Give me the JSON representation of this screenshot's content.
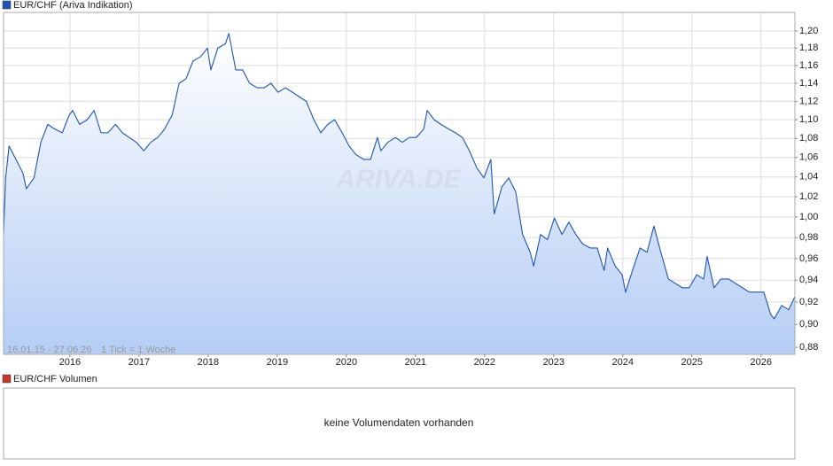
{
  "chart_data": {
    "type": "area",
    "watermark": "ARIVA.DE",
    "date_range": "16.01.15 - 27.06.26",
    "tick_note": "1 Tick = 1 Woche",
    "log_scale": true,
    "grid": true,
    "xlim": [
      2015.04,
      2026.49
    ],
    "xticks": [
      2016,
      2017,
      2018,
      2019,
      2020,
      2021,
      2022,
      2023,
      2024,
      2025,
      2026
    ],
    "ylim": [
      0.874,
      1.222
    ],
    "yticks": [
      {
        "value": 0.88,
        "label": "0,88"
      },
      {
        "value": 0.9,
        "label": "0,90"
      },
      {
        "value": 0.92,
        "label": "0,92"
      },
      {
        "value": 0.94,
        "label": "0,94"
      },
      {
        "value": 0.96,
        "label": "0,96"
      },
      {
        "value": 0.98,
        "label": "0,98"
      },
      {
        "value": 1.0,
        "label": "1,00"
      },
      {
        "value": 1.02,
        "label": "1,02"
      },
      {
        "value": 1.04,
        "label": "1,04"
      },
      {
        "value": 1.06,
        "label": "1,06"
      },
      {
        "value": 1.08,
        "label": "1,08"
      },
      {
        "value": 1.1,
        "label": "1,10"
      },
      {
        "value": 1.12,
        "label": "1,12"
      },
      {
        "value": 1.14,
        "label": "1,14"
      },
      {
        "value": 1.16,
        "label": "1,16"
      },
      {
        "value": 1.18,
        "label": "1,18"
      },
      {
        "value": 1.2,
        "label": "1,20"
      }
    ],
    "x": [
      2015.04,
      2015.07,
      2015.12,
      2015.22,
      2015.32,
      2015.37,
      2015.48,
      2015.58,
      2015.68,
      2015.78,
      2015.89,
      2015.99,
      2016.04,
      2016.14,
      2016.25,
      2016.35,
      2016.45,
      2016.55,
      2016.66,
      2016.76,
      2016.86,
      2016.96,
      2017.07,
      2017.17,
      2017.27,
      2017.37,
      2017.48,
      2017.58,
      2017.68,
      2017.78,
      2017.89,
      2017.99,
      2018.04,
      2018.14,
      2018.25,
      2018.3,
      2018.4,
      2018.5,
      2018.6,
      2018.71,
      2018.81,
      2018.91,
      2019.01,
      2019.12,
      2019.22,
      2019.32,
      2019.42,
      2019.53,
      2019.63,
      2019.73,
      2019.83,
      2019.94,
      2020.04,
      2020.14,
      2020.25,
      2020.35,
      2020.45,
      2020.5,
      2020.6,
      2020.71,
      2020.81,
      2020.91,
      2021.01,
      2021.12,
      2021.17,
      2021.27,
      2021.37,
      2021.48,
      2021.58,
      2021.68,
      2021.78,
      2021.89,
      2021.99,
      2022.09,
      2022.14,
      2022.25,
      2022.35,
      2022.45,
      2022.55,
      2022.66,
      2022.71,
      2022.81,
      2022.91,
      2023.01,
      2023.12,
      2023.22,
      2023.32,
      2023.42,
      2023.53,
      2023.63,
      2023.73,
      2023.78,
      2023.89,
      2023.99,
      2024.04,
      2024.14,
      2024.25,
      2024.35,
      2024.45,
      2024.55,
      2024.66,
      2024.76,
      2024.86,
      2024.96,
      2025.07,
      2025.17,
      2025.22,
      2025.32,
      2025.42,
      2025.53,
      2025.63,
      2025.73,
      2025.83,
      2025.94,
      2026.04,
      2026.14,
      2026.19,
      2026.3,
      2026.4,
      2026.49
    ],
    "series": [
      {
        "name": "EUR/CHF (Ariva Indikation)",
        "color": "#1f55b0",
        "values": [
          0.983,
          1.039,
          1.072,
          1.058,
          1.044,
          1.028,
          1.039,
          1.076,
          1.095,
          1.09,
          1.086,
          1.105,
          1.11,
          1.095,
          1.1,
          1.11,
          1.086,
          1.086,
          1.095,
          1.086,
          1.081,
          1.076,
          1.067,
          1.076,
          1.081,
          1.09,
          1.105,
          1.14,
          1.145,
          1.165,
          1.17,
          1.18,
          1.155,
          1.18,
          1.185,
          1.197,
          1.155,
          1.155,
          1.14,
          1.135,
          1.135,
          1.14,
          1.13,
          1.135,
          1.13,
          1.125,
          1.12,
          1.1,
          1.086,
          1.095,
          1.1,
          1.086,
          1.072,
          1.063,
          1.058,
          1.058,
          1.081,
          1.067,
          1.076,
          1.081,
          1.076,
          1.081,
          1.081,
          1.09,
          1.11,
          1.1,
          1.095,
          1.09,
          1.086,
          1.081,
          1.067,
          1.049,
          1.039,
          1.058,
          1.003,
          1.03,
          1.039,
          1.025,
          0.983,
          0.966,
          0.953,
          0.983,
          0.978,
          0.999,
          0.983,
          0.995,
          0.983,
          0.974,
          0.97,
          0.97,
          0.949,
          0.97,
          0.953,
          0.945,
          0.929,
          0.949,
          0.97,
          0.966,
          0.991,
          0.966,
          0.941,
          0.937,
          0.933,
          0.933,
          0.945,
          0.941,
          0.962,
          0.933,
          0.941,
          0.941,
          0.937,
          0.933,
          0.929,
          0.929,
          0.929,
          0.909,
          0.905,
          0.917,
          0.913,
          0.925
        ]
      }
    ]
  },
  "volume_panel": {
    "title": "EUR/CHF Volumen",
    "color": "#c0392b",
    "message": "keine Volumendaten vorhanden"
  }
}
